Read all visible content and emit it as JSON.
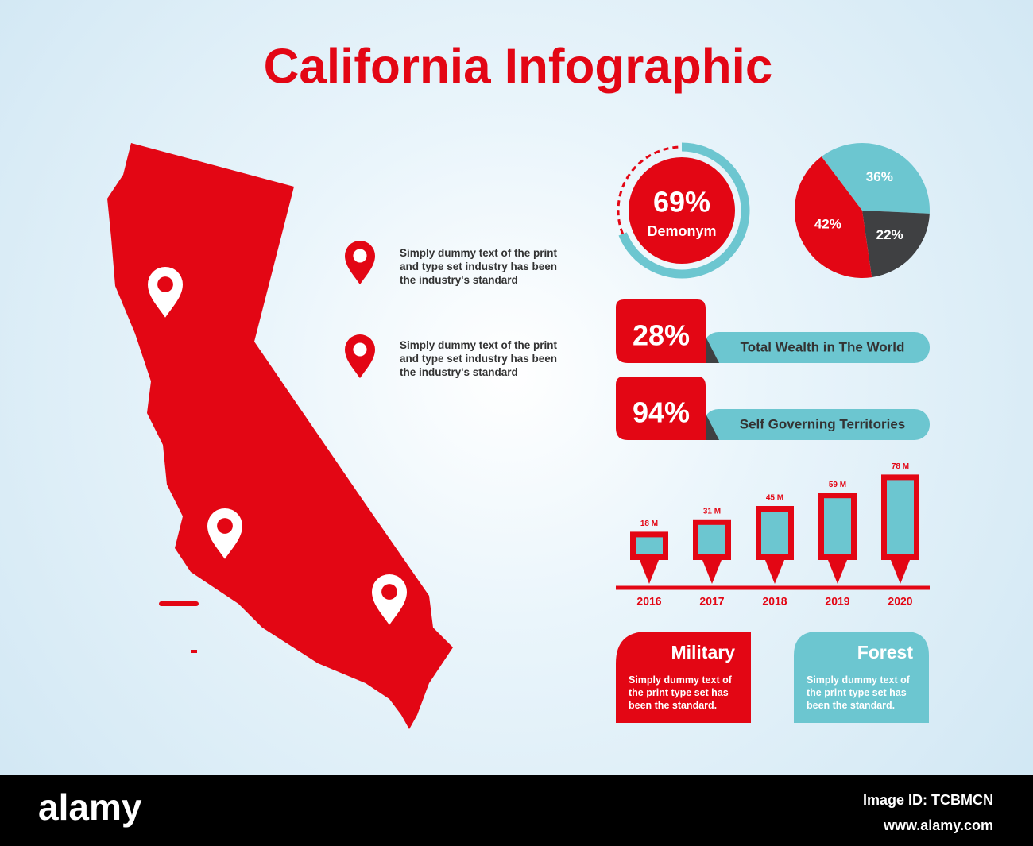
{
  "title": "California Infographic",
  "pin_notes": [
    "Simply dummy text of the print and type set industry has been the industry's standard",
    "Simply dummy text of the print and type set industry has been the industry's standard"
  ],
  "chart_data": [
    {
      "type": "gauge",
      "categories": [
        "Demonym"
      ],
      "values": [
        69
      ],
      "value_labels": [
        "69%"
      ],
      "colors": [
        "#6cc6d0",
        "#e30614"
      ]
    },
    {
      "type": "pie",
      "values": [
        36,
        22,
        42
      ],
      "value_labels": [
        "36%",
        "22%",
        "42%"
      ],
      "colors": [
        "#6cc6d0",
        "#3f4042",
        "#e30614"
      ]
    },
    {
      "type": "bar",
      "categories": [
        "2016",
        "2017",
        "2018",
        "2019",
        "2020"
      ],
      "values": [
        18,
        31,
        45,
        59,
        78
      ],
      "value_labels": [
        "18 M",
        "31 M",
        "45 M",
        "59 M",
        "78 M"
      ],
      "color": "#6cc6d0",
      "frame_color": "#e30614"
    }
  ],
  "stats": [
    {
      "value": "28%",
      "text": "Total Wealth in The World"
    },
    {
      "value": "94%",
      "text": "Self Governing Territories"
    }
  ],
  "cards": [
    {
      "title": "Military",
      "text": "Simply dummy text of the print type set has been the standard."
    },
    {
      "title": "Forest",
      "text": "Simply dummy text of the print type set has been the standard."
    }
  ],
  "footer": {
    "brand": "alamy",
    "image_id": "Image ID: TCBMCN",
    "url": "www.alamy.com"
  }
}
